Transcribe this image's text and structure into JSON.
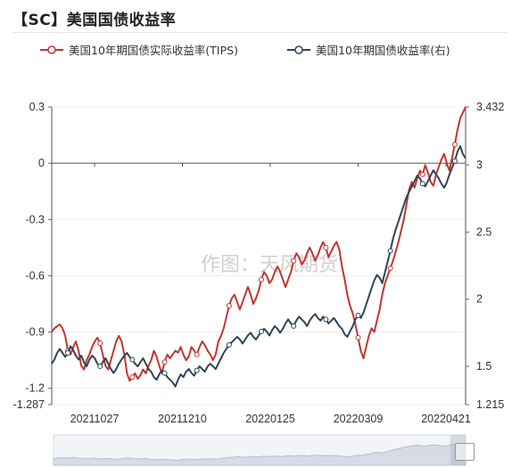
{
  "header": {
    "title": "【SC】美国国债收益率"
  },
  "watermark": "作图：天风期货",
  "chart_data": {
    "type": "line",
    "legend_position": "top-center",
    "grid": "horizontal",
    "x_tick_labels": [
      "20211027",
      "20211210",
      "20220125",
      "20220309",
      "20220421"
    ],
    "y_left": {
      "ticks": [
        "0.3",
        "0",
        "-0.3",
        "-0.6",
        "-0.9",
        "-1.2",
        "-1.287"
      ],
      "min": -1.287,
      "max": 0.3
    },
    "y_right": {
      "ticks": [
        "3.432",
        "3",
        "2.5",
        "2",
        "1.5",
        "1.215"
      ],
      "min": 1.215,
      "max": 3.432
    },
    "series": [
      {
        "name": "美国10年期国债实际收益率(TIPS)",
        "axis": "left",
        "color": "#c23531",
        "values": [
          -0.9,
          -0.88,
          -0.87,
          -0.86,
          -0.88,
          -0.92,
          -1.0,
          -1.02,
          -0.98,
          -0.95,
          -1.0,
          -1.08,
          -1.1,
          -1.05,
          -1.02,
          -0.98,
          -0.95,
          -0.93,
          -0.96,
          -1.02,
          -1.08,
          -1.1,
          -1.05,
          -1.0,
          -0.95,
          -0.92,
          -0.95,
          -1.02,
          -1.12,
          -1.16,
          -1.14,
          -1.12,
          -1.15,
          -1.13,
          -1.1,
          -1.12,
          -1.08,
          -1.05,
          -1.0,
          -1.03,
          -1.08,
          -1.12,
          -1.06,
          -1.02,
          -1.04,
          -1.02,
          -1.0,
          -1.01,
          -0.98,
          -1.02,
          -1.05,
          -1.03,
          -0.98,
          -1.0,
          -1.02,
          -0.98,
          -0.95,
          -0.97,
          -1.0,
          -1.02,
          -1.05,
          -1.02,
          -0.95,
          -0.92,
          -0.88,
          -0.82,
          -0.76,
          -0.72,
          -0.7,
          -0.74,
          -0.78,
          -0.74,
          -0.7,
          -0.66,
          -0.7,
          -0.75,
          -0.72,
          -0.68,
          -0.62,
          -0.58,
          -0.6,
          -0.64,
          -0.62,
          -0.58,
          -0.55,
          -0.58,
          -0.62,
          -0.66,
          -0.62,
          -0.58,
          -0.52,
          -0.48,
          -0.5,
          -0.54,
          -0.52,
          -0.48,
          -0.45,
          -0.48,
          -0.52,
          -0.49,
          -0.45,
          -0.42,
          -0.45,
          -0.5,
          -0.47,
          -0.44,
          -0.42,
          -0.46,
          -0.55,
          -0.62,
          -0.7,
          -0.76,
          -0.8,
          -0.86,
          -0.93,
          -1.0,
          -1.04,
          -0.98,
          -0.92,
          -0.88,
          -0.9,
          -0.84,
          -0.78,
          -0.7,
          -0.64,
          -0.6,
          -0.56,
          -0.52,
          -0.47,
          -0.42,
          -0.36,
          -0.3,
          -0.22,
          -0.14,
          -0.1,
          -0.13,
          -0.08,
          -0.04,
          -0.06,
          -0.01,
          -0.05,
          -0.1,
          -0.12,
          -0.06,
          -0.02,
          0.02,
          0.05,
          0.0,
          -0.04,
          0.03,
          0.1,
          0.18,
          0.24,
          0.27,
          0.3
        ]
      },
      {
        "name": "美国10年期国债收益率(右)",
        "axis": "right",
        "color": "#2f4554",
        "values": [
          1.52,
          1.55,
          1.6,
          1.63,
          1.6,
          1.57,
          1.6,
          1.65,
          1.62,
          1.58,
          1.55,
          1.58,
          1.53,
          1.5,
          1.55,
          1.58,
          1.56,
          1.52,
          1.5,
          1.53,
          1.56,
          1.52,
          1.48,
          1.45,
          1.48,
          1.52,
          1.55,
          1.58,
          1.6,
          1.57,
          1.55,
          1.52,
          1.5,
          1.53,
          1.56,
          1.52,
          1.48,
          1.46,
          1.42,
          1.4,
          1.44,
          1.47,
          1.45,
          1.42,
          1.4,
          1.38,
          1.35,
          1.4,
          1.44,
          1.42,
          1.46,
          1.48,
          1.45,
          1.43,
          1.47,
          1.5,
          1.48,
          1.46,
          1.5,
          1.52,
          1.5,
          1.48,
          1.52,
          1.56,
          1.6,
          1.63,
          1.66,
          1.68,
          1.7,
          1.72,
          1.7,
          1.67,
          1.7,
          1.73,
          1.75,
          1.72,
          1.7,
          1.73,
          1.76,
          1.78,
          1.76,
          1.73,
          1.77,
          1.8,
          1.78,
          1.75,
          1.78,
          1.82,
          1.85,
          1.82,
          1.8,
          1.84,
          1.87,
          1.85,
          1.83,
          1.8,
          1.84,
          1.87,
          1.89,
          1.86,
          1.84,
          1.87,
          1.85,
          1.82,
          1.84,
          1.86,
          1.83,
          1.8,
          1.78,
          1.74,
          1.72,
          1.76,
          1.8,
          1.85,
          1.88,
          1.86,
          1.9,
          1.96,
          2.02,
          2.08,
          2.14,
          2.18,
          2.16,
          2.12,
          2.2,
          2.28,
          2.36,
          2.45,
          2.52,
          2.58,
          2.64,
          2.7,
          2.76,
          2.8,
          2.84,
          2.88,
          2.92,
          2.9,
          2.86,
          2.84,
          2.88,
          2.92,
          2.96,
          2.93,
          2.9,
          2.86,
          2.83,
          2.87,
          2.93,
          2.98,
          3.03,
          3.1,
          3.14,
          3.08,
          3.05
        ]
      }
    ]
  }
}
